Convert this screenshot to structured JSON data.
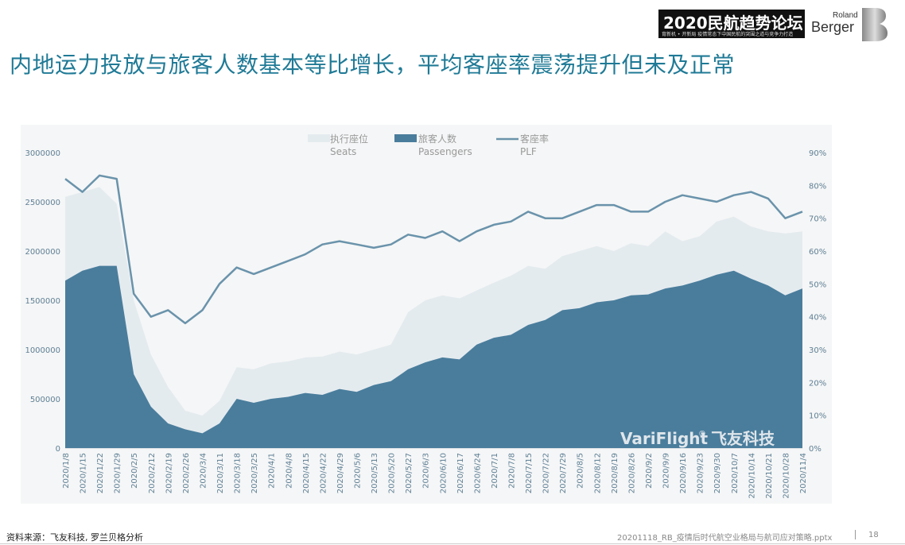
{
  "header": {
    "title": "内地运力投放与旅客人数基本等比增长，平均客座率震荡提升但未及正常",
    "event_logo_main": "2020民航趋势论坛",
    "event_logo_sub": "育新机 • 开新局   疫情常态下中国民航的突围之道与竞争力打造",
    "brand_top": "Roland",
    "brand_bottom": "Berger"
  },
  "chart_data": {
    "type": "area",
    "legend": [
      {
        "name_cn": "执行座位",
        "name_en": "Seats",
        "color": "#e4ebef",
        "kind": "area"
      },
      {
        "name_cn": "旅客人数",
        "name_en": "Passengers",
        "color": "#4a7d9c",
        "kind": "area"
      },
      {
        "name_cn": "客座率",
        "name_en": "PLF",
        "color": "#6a93ab",
        "kind": "line"
      }
    ],
    "legend_position": "top-center",
    "y_left": {
      "ticks": [
        "0",
        "500000",
        "1000000",
        "1500000",
        "2000000",
        "2500000",
        "3000000"
      ],
      "ylim": [
        0,
        3000000
      ]
    },
    "y_right": {
      "ticks": [
        "0%",
        "10%",
        "20%",
        "30%",
        "40%",
        "50%",
        "60%",
        "70%",
        "80%",
        "90%"
      ],
      "ylim": [
        0,
        0.9
      ]
    },
    "x_tick_labels": [
      "2020/1/8",
      "2020/1/15",
      "2020/1/22",
      "2020/1/29",
      "2020/2/5",
      "2020/2/12",
      "2020/2/19",
      "2020/2/26",
      "2020/3/4",
      "2020/3/11",
      "2020/3/18",
      "2020/3/25",
      "2020/4/1",
      "2020/4/8",
      "2020/4/15",
      "2020/4/22",
      "2020/4/29",
      "2020/5/6",
      "2020/5/13",
      "2020/5/20",
      "2020/5/27",
      "2020/6/3",
      "2020/6/10",
      "2020/6/17",
      "2020/6/24",
      "2020/7/1",
      "2020/7/8",
      "2020/7/15",
      "2020/7/22",
      "2020/7/29",
      "2020/8/5",
      "2020/8/12",
      "2020/8/19",
      "2020/8/26",
      "2020/9/2",
      "2020/9/9",
      "2020/9/16",
      "2020/9/23",
      "2020/9/30",
      "2020/10/7",
      "2020/10/14",
      "2020/10/21",
      "2020/10/28",
      "2020/11/4"
    ],
    "series": [
      {
        "name": "Seats",
        "values": [
          2550000,
          2600000,
          2650000,
          2480000,
          1500000,
          950000,
          620000,
          380000,
          330000,
          480000,
          820000,
          800000,
          860000,
          880000,
          920000,
          930000,
          980000,
          950000,
          1000000,
          1050000,
          1380000,
          1500000,
          1550000,
          1520000,
          1600000,
          1680000,
          1750000,
          1850000,
          1820000,
          1950000,
          2000000,
          2050000,
          2000000,
          2080000,
          2050000,
          2200000,
          2100000,
          2150000,
          2300000,
          2350000,
          2250000,
          2200000,
          2180000,
          2200000
        ]
      },
      {
        "name": "Passengers",
        "values": [
          1700000,
          1800000,
          1850000,
          1850000,
          750000,
          420000,
          250000,
          190000,
          150000,
          250000,
          500000,
          460000,
          500000,
          520000,
          560000,
          540000,
          600000,
          570000,
          640000,
          680000,
          800000,
          870000,
          920000,
          900000,
          1050000,
          1120000,
          1150000,
          1250000,
          1300000,
          1400000,
          1420000,
          1480000,
          1500000,
          1550000,
          1560000,
          1620000,
          1650000,
          1700000,
          1760000,
          1800000,
          1720000,
          1650000,
          1550000,
          1620000
        ]
      },
      {
        "name": "PLF",
        "values": [
          0.82,
          0.78,
          0.83,
          0.82,
          0.47,
          0.4,
          0.42,
          0.38,
          0.42,
          0.5,
          0.55,
          0.53,
          0.55,
          0.57,
          0.59,
          0.62,
          0.63,
          0.62,
          0.61,
          0.62,
          0.65,
          0.64,
          0.66,
          0.63,
          0.66,
          0.68,
          0.69,
          0.72,
          0.7,
          0.7,
          0.72,
          0.74,
          0.74,
          0.72,
          0.72,
          0.75,
          0.77,
          0.76,
          0.75,
          0.77,
          0.78,
          0.76,
          0.7,
          0.72
        ]
      }
    ]
  },
  "watermark": {
    "brand": "VariFlight",
    "reg": "®",
    "cn": "飞友科技"
  },
  "footer": {
    "source": "资料来源：飞友科技, 罗兰贝格分析",
    "filename": "20201118_RB_疫情后时代航空业格局与航司应对策略.pptx",
    "page": "18"
  }
}
